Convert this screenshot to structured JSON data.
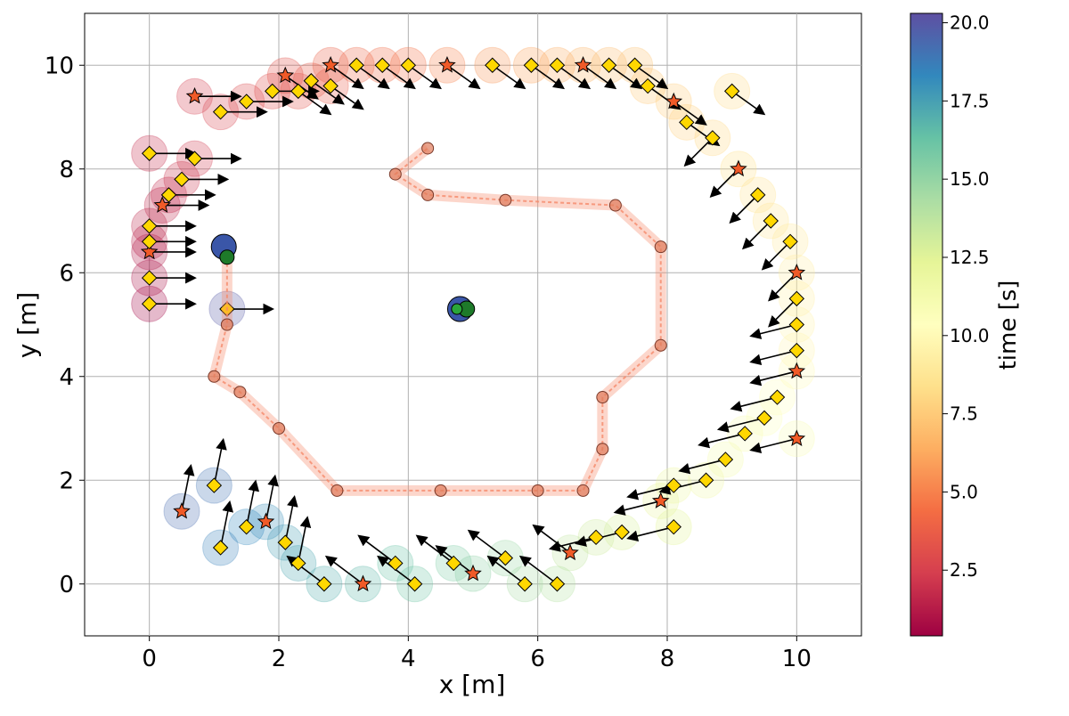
{
  "chart_data": {
    "type": "scatter",
    "title": "",
    "xlabel": "x [m]",
    "ylabel": "y [m]",
    "xlim": [
      -1,
      11
    ],
    "ylim": [
      -1,
      11
    ],
    "xticks": [
      "0",
      "2",
      "4",
      "6",
      "8",
      "10"
    ],
    "yticks": [
      "0",
      "2",
      "4",
      "6",
      "8",
      "10"
    ],
    "grid": true,
    "colorbar": {
      "label": "time [s]",
      "range": [
        0.4,
        20.3
      ],
      "ticks": [
        "2.5",
        "5.0",
        "7.5",
        "10.0",
        "12.5",
        "15.0",
        "17.5",
        "20.0"
      ],
      "colormap": "Spectral"
    },
    "colors": {
      "marker_diamond": "#FFD700",
      "marker_star": "#F05A28",
      "arrow": "#000000",
      "robot_path": "#F5896A",
      "robot_dot": "#E07B5A"
    },
    "rectangular_track": {
      "description_points": "x,y,time",
      "points": [
        [
          0.0,
          5.4,
          0.5
        ],
        [
          0.0,
          5.9,
          0.8
        ],
        [
          0.0,
          6.4,
          1.1
        ],
        [
          0.0,
          6.6,
          1.3
        ],
        [
          0.0,
          6.9,
          1.5
        ],
        [
          0.0,
          8.3,
          1.8
        ],
        [
          0.2,
          7.3,
          1.6
        ],
        [
          0.3,
          7.5,
          1.7
        ],
        [
          0.5,
          7.8,
          2.0
        ],
        [
          0.7,
          8.2,
          2.2
        ],
        [
          0.7,
          9.4,
          2.4
        ],
        [
          1.1,
          9.1,
          2.6
        ],
        [
          1.5,
          9.3,
          2.8
        ],
        [
          1.9,
          9.5,
          3.0
        ],
        [
          2.1,
          9.8,
          3.2
        ],
        [
          2.3,
          9.5,
          3.3
        ],
        [
          2.5,
          9.7,
          3.5
        ],
        [
          2.8,
          9.6,
          3.6
        ],
        [
          2.8,
          10.0,
          3.8
        ],
        [
          3.2,
          10.0,
          4.0
        ],
        [
          3.6,
          10.0,
          4.2
        ],
        [
          4.0,
          10.0,
          4.4
        ],
        [
          4.6,
          10.0,
          5.0
        ],
        [
          5.3,
          10.0,
          5.5
        ],
        [
          5.9,
          10.0,
          6.0
        ],
        [
          6.3,
          10.0,
          6.3
        ],
        [
          6.7,
          10.0,
          6.6
        ],
        [
          7.1,
          10.0,
          6.9
        ],
        [
          7.5,
          10.0,
          7.2
        ],
        [
          7.7,
          9.6,
          7.4
        ],
        [
          8.1,
          9.3,
          7.6
        ],
        [
          8.3,
          8.9,
          7.8
        ],
        [
          8.7,
          8.6,
          8.0
        ],
        [
          9.0,
          9.5,
          8.2
        ],
        [
          9.1,
          8.0,
          8.4
        ],
        [
          9.4,
          7.5,
          8.6
        ],
        [
          9.6,
          7.0,
          8.8
        ],
        [
          9.9,
          6.6,
          9.0
        ],
        [
          10.0,
          6.0,
          9.2
        ],
        [
          10.0,
          5.5,
          9.4
        ],
        [
          10.0,
          5.0,
          9.6
        ],
        [
          10.0,
          4.5,
          9.8
        ],
        [
          10.0,
          4.1,
          10.0
        ],
        [
          9.7,
          3.6,
          10.3
        ],
        [
          9.5,
          3.2,
          10.6
        ],
        [
          9.2,
          2.9,
          10.9
        ],
        [
          10.0,
          2.8,
          11.0
        ],
        [
          8.9,
          2.4,
          11.2
        ],
        [
          8.6,
          2.0,
          11.5
        ],
        [
          8.1,
          1.9,
          11.8
        ],
        [
          7.9,
          1.6,
          12.1
        ],
        [
          8.1,
          1.1,
          12.4
        ],
        [
          7.3,
          1.0,
          12.8
        ],
        [
          6.9,
          0.9,
          13.2
        ],
        [
          6.5,
          0.6,
          13.6
        ],
        [
          6.3,
          0.0,
          14.0
        ],
        [
          5.8,
          0.0,
          14.4
        ],
        [
          5.5,
          0.5,
          14.8
        ],
        [
          5.0,
          0.2,
          15.2
        ],
        [
          4.7,
          0.4,
          15.6
        ],
        [
          4.1,
          0.0,
          16.0
        ],
        [
          3.8,
          0.4,
          16.3
        ],
        [
          3.3,
          0.0,
          16.7
        ],
        [
          2.7,
          0.0,
          17.0
        ],
        [
          2.3,
          0.4,
          17.3
        ],
        [
          2.1,
          0.8,
          17.6
        ],
        [
          1.8,
          1.2,
          18.0
        ],
        [
          1.5,
          1.1,
          18.3
        ],
        [
          1.1,
          0.7,
          18.6
        ],
        [
          1.0,
          1.9,
          19.0
        ],
        [
          0.5,
          1.4,
          19.3
        ],
        [
          1.2,
          5.3,
          20.0
        ]
      ]
    },
    "robot_path": {
      "description_points": "x,y",
      "points": [
        [
          1.2,
          6.3
        ],
        [
          1.2,
          5.0
        ],
        [
          1.0,
          4.0
        ],
        [
          1.4,
          3.7
        ],
        [
          2.0,
          3.0
        ],
        [
          2.9,
          1.8
        ],
        [
          4.5,
          1.8
        ],
        [
          6.0,
          1.8
        ],
        [
          6.7,
          1.8
        ],
        [
          7.0,
          2.6
        ],
        [
          7.0,
          3.6
        ],
        [
          7.9,
          4.6
        ],
        [
          7.9,
          6.5
        ],
        [
          7.2,
          7.3
        ],
        [
          5.5,
          7.4
        ],
        [
          4.3,
          7.5
        ],
        [
          3.8,
          7.9
        ],
        [
          4.3,
          8.4
        ]
      ]
    },
    "center_markers": [
      {
        "x": 4.8,
        "y": 5.3,
        "kind": "start"
      },
      {
        "x": 4.9,
        "y": 5.3,
        "kind": "goal"
      }
    ]
  }
}
